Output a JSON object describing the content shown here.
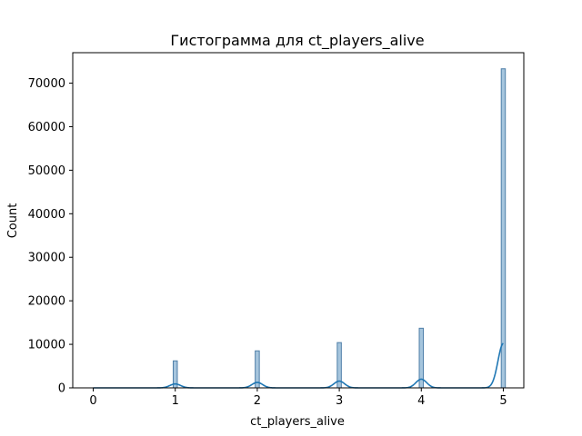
{
  "chart_data": {
    "type": "bar",
    "title": "Гистограмма для ct_players_alive",
    "xlabel": "ct_players_alive",
    "ylabel": "Count",
    "xlim": [
      -0.25,
      5.25
    ],
    "ylim": [
      0,
      77000
    ],
    "x_ticks": [
      0,
      1,
      2,
      3,
      4,
      5
    ],
    "x_tick_labels": [
      "0",
      "1",
      "2",
      "3",
      "4",
      "5"
    ],
    "y_ticks": [
      0,
      10000,
      20000,
      30000,
      40000,
      50000,
      60000,
      70000
    ],
    "y_tick_labels": [
      "0",
      "10000",
      "20000",
      "30000",
      "40000",
      "50000",
      "60000",
      "70000"
    ],
    "bin_width": 0.05,
    "categories": [
      "0",
      "1",
      "2",
      "3",
      "4",
      "5"
    ],
    "values": [
      0,
      6200,
      8500,
      10400,
      13700,
      73300
    ],
    "kde": {
      "bandwidth": 0.065,
      "peaks": [
        {
          "x": 0,
          "y": 0
        },
        {
          "x": 1,
          "y": 900
        },
        {
          "x": 2,
          "y": 1250
        },
        {
          "x": 3,
          "y": 1550
        },
        {
          "x": 4,
          "y": 2000
        },
        {
          "x": 5,
          "y": 10200
        }
      ]
    },
    "grid": false,
    "colors": {
      "bar_fill": "#a6c5dd",
      "bar_edge": "#4f7fa8",
      "kde_line": "#1f77b4",
      "axis": "#000000"
    }
  }
}
